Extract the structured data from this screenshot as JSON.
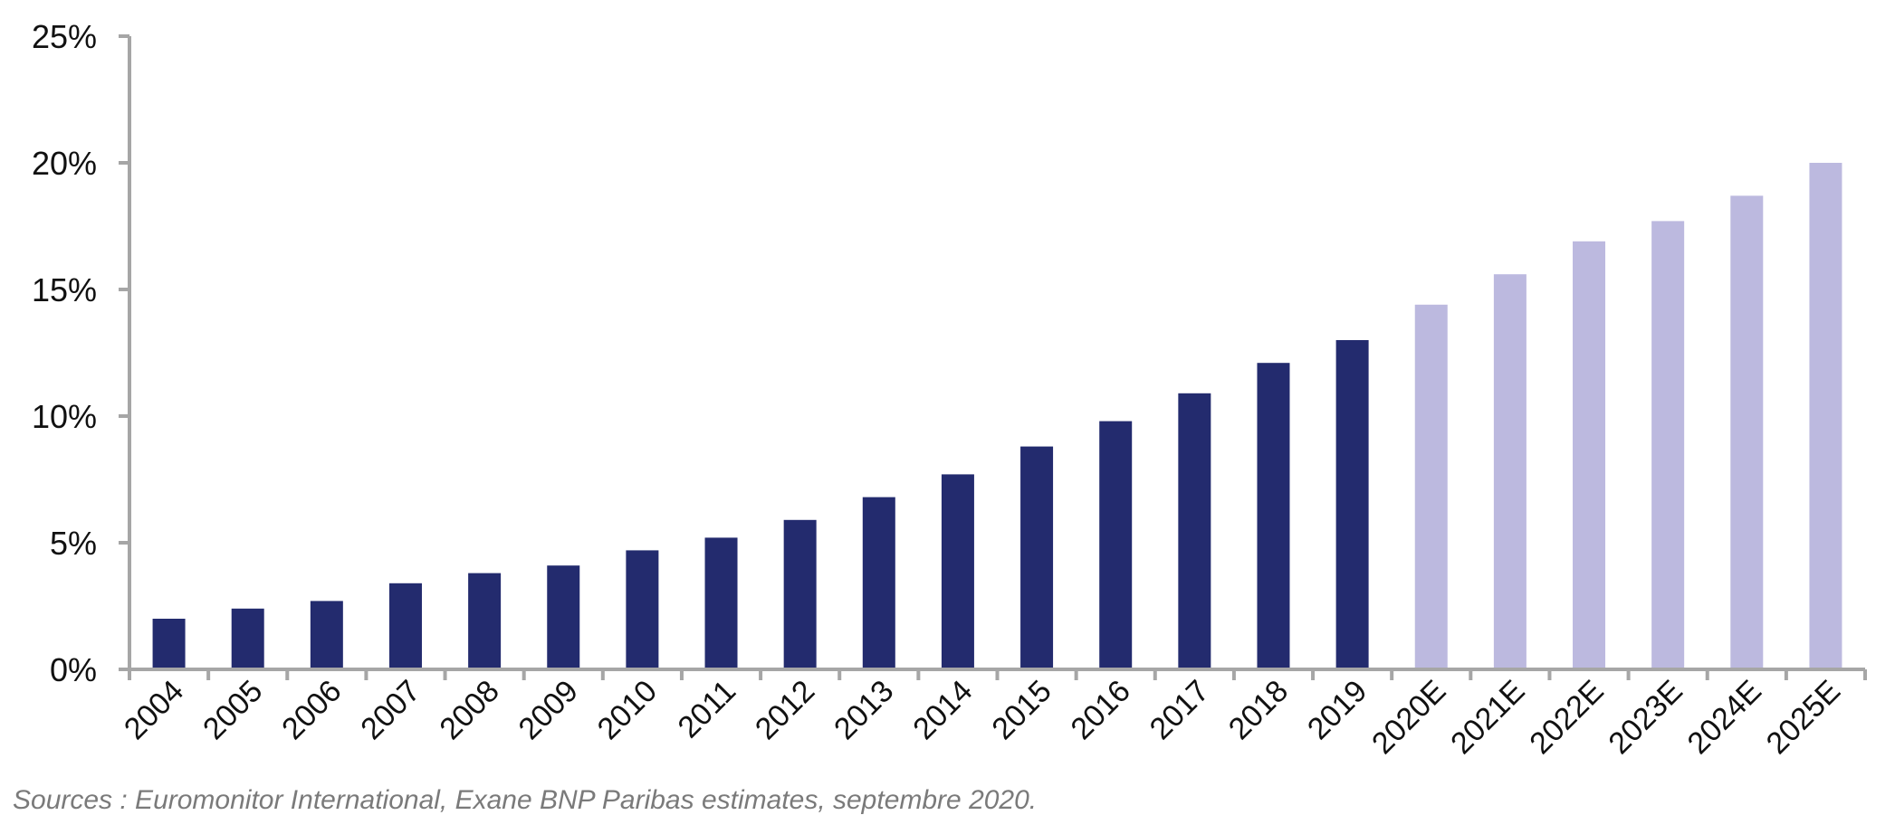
{
  "chart_data": {
    "type": "bar",
    "title": "",
    "xlabel": "",
    "ylabel": "",
    "categories": [
      "2004",
      "2005",
      "2006",
      "2007",
      "2008",
      "2009",
      "2010",
      "2011",
      "2012",
      "2013",
      "2014",
      "2015",
      "2016",
      "2017",
      "2018",
      "2019",
      "2020E",
      "2021E",
      "2022E",
      "2023E",
      "2024E",
      "2025E"
    ],
    "values": [
      2.0,
      2.4,
      2.7,
      3.4,
      3.8,
      4.1,
      4.7,
      5.2,
      5.9,
      6.8,
      7.7,
      8.8,
      9.8,
      10.9,
      12.1,
      13.0,
      14.4,
      15.6,
      16.9,
      17.7,
      18.7,
      20.0
    ],
    "estimated": [
      false,
      false,
      false,
      false,
      false,
      false,
      false,
      false,
      false,
      false,
      false,
      false,
      false,
      false,
      false,
      false,
      true,
      true,
      true,
      true,
      true,
      true
    ],
    "ylim": [
      0,
      25
    ],
    "yticks": [
      0,
      5,
      10,
      15,
      20,
      25
    ],
    "ytick_labels": [
      "0%",
      "5%",
      "10%",
      "15%",
      "20%",
      "25%"
    ],
    "grid": false,
    "legend": "none",
    "colors": {
      "actual": "#232b6e",
      "estimate": "#bcb9df",
      "axis": "#a6a6a6"
    }
  },
  "source_note": "Sources : Euromonitor International, Exane BNP Paribas estimates, septembre 2020."
}
